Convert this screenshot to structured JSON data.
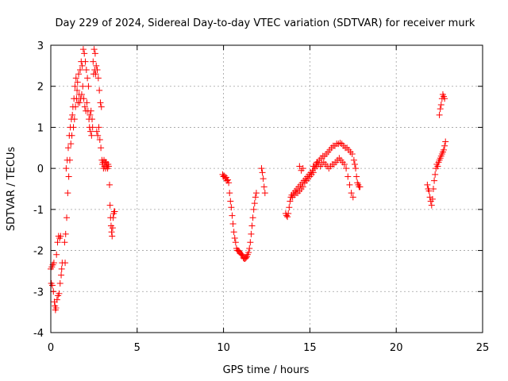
{
  "chart_data": {
    "type": "scatter",
    "title": "Day 229 of 2024, Sidereal Day-to-day VTEC variation (SDTVAR) for receiver murk",
    "xlabel": "GPS time / hours",
    "ylabel": "SDTVAR / TECUs",
    "xlim": [
      0,
      25
    ],
    "ylim": [
      -4,
      3
    ],
    "xticks": [
      0,
      5,
      10,
      15,
      20,
      25
    ],
    "yticks": [
      -4,
      -3,
      -2,
      -1,
      0,
      1,
      2,
      3
    ],
    "xtick_labels": [
      "0",
      "5",
      "10",
      "15",
      "20",
      "25"
    ],
    "ytick_labels": [
      "-4",
      "-3",
      "-2",
      "-1",
      "0",
      "1",
      "2",
      "3"
    ],
    "grid": true,
    "marker": "plus",
    "colors": {
      "series": "#ff0000",
      "grid": "#a0a0a0",
      "axis": "#000000"
    },
    "series": [
      {
        "name": "SDTVAR",
        "points": [
          [
            0.0,
            -2.45
          ],
          [
            0.03,
            -2.8
          ],
          [
            0.06,
            -2.4
          ],
          [
            0.09,
            -2.85
          ],
          [
            0.12,
            -2.35
          ],
          [
            0.15,
            -3.0
          ],
          [
            0.18,
            -2.3
          ],
          [
            0.21,
            -3.25
          ],
          [
            0.24,
            -3.35
          ],
          [
            0.27,
            -3.45
          ],
          [
            0.3,
            -3.4
          ],
          [
            0.33,
            -2.1
          ],
          [
            0.36,
            -3.2
          ],
          [
            0.39,
            -1.8
          ],
          [
            0.42,
            -3.1
          ],
          [
            0.45,
            -1.65
          ],
          [
            0.48,
            -3.05
          ],
          [
            0.51,
            -1.7
          ],
          [
            0.54,
            -2.8
          ],
          [
            0.57,
            -1.65
          ],
          [
            0.6,
            -2.6
          ],
          [
            0.63,
            -2.45
          ],
          [
            0.66,
            -2.3
          ],
          [
            0.8,
            -1.8
          ],
          [
            0.83,
            -2.3
          ],
          [
            0.86,
            -1.6
          ],
          [
            0.89,
            0.0
          ],
          [
            0.92,
            -1.2
          ],
          [
            0.95,
            0.2
          ],
          [
            0.98,
            -0.6
          ],
          [
            1.01,
            0.5
          ],
          [
            1.04,
            -0.2
          ],
          [
            1.07,
            0.8
          ],
          [
            1.1,
            0.2
          ],
          [
            1.13,
            1.0
          ],
          [
            1.16,
            0.6
          ],
          [
            1.19,
            1.2
          ],
          [
            1.22,
            0.8
          ],
          [
            1.25,
            1.3
          ],
          [
            1.28,
            1.5
          ],
          [
            1.31,
            1.0
          ],
          [
            1.34,
            1.7
          ],
          [
            1.37,
            1.2
          ],
          [
            1.4,
            2.0
          ],
          [
            1.43,
            1.5
          ],
          [
            1.46,
            2.2
          ],
          [
            1.49,
            1.7
          ],
          [
            1.52,
            1.9
          ],
          [
            1.55,
            2.1
          ],
          [
            1.58,
            1.6
          ],
          [
            1.61,
            2.3
          ],
          [
            1.64,
            1.8
          ],
          [
            1.67,
            1.6
          ],
          [
            1.7,
            2.4
          ],
          [
            1.73,
            1.7
          ],
          [
            1.76,
            2.6
          ],
          [
            1.79,
            1.8
          ],
          [
            1.82,
            2.5
          ],
          [
            1.85,
            2.0
          ],
          [
            1.88,
            2.9
          ],
          [
            1.91,
            1.7
          ],
          [
            1.94,
            2.8
          ],
          [
            1.97,
            1.5
          ],
          [
            2.0,
            2.6
          ],
          [
            2.03,
            1.4
          ],
          [
            2.06,
            2.4
          ],
          [
            2.09,
            1.6
          ],
          [
            2.12,
            2.2
          ],
          [
            2.15,
            1.4
          ],
          [
            2.18,
            2.0
          ],
          [
            2.21,
            1.2
          ],
          [
            2.24,
            1.0
          ],
          [
            2.27,
            1.3
          ],
          [
            2.3,
            0.9
          ],
          [
            2.33,
            1.4
          ],
          [
            2.36,
            0.8
          ],
          [
            2.39,
            1.2
          ],
          [
            2.42,
            1.0
          ],
          [
            2.45,
            2.6
          ],
          [
            2.48,
            2.3
          ],
          [
            2.51,
            2.9
          ],
          [
            2.54,
            2.4
          ],
          [
            2.57,
            2.8
          ],
          [
            2.6,
            2.3
          ],
          [
            2.63,
            2.5
          ],
          [
            2.66,
            0.9
          ],
          [
            2.69,
            2.4
          ],
          [
            2.72,
            0.8
          ],
          [
            2.75,
            2.2
          ],
          [
            2.78,
            1.0
          ],
          [
            2.81,
            1.9
          ],
          [
            2.84,
            0.7
          ],
          [
            2.87,
            1.6
          ],
          [
            2.9,
            0.5
          ],
          [
            2.93,
            1.5
          ],
          [
            2.96,
            0.2
          ],
          [
            2.99,
            0.1
          ],
          [
            3.02,
            0.15
          ],
          [
            3.05,
            0.0
          ],
          [
            3.08,
            0.2
          ],
          [
            3.11,
            0.05
          ],
          [
            3.14,
            0.15
          ],
          [
            3.17,
            0.0
          ],
          [
            3.2,
            0.15
          ],
          [
            3.23,
            0.05
          ],
          [
            3.26,
            0.1
          ],
          [
            3.29,
            0.0
          ],
          [
            3.32,
            0.1
          ],
          [
            3.35,
            0.05
          ],
          [
            3.4,
            -0.4
          ],
          [
            3.43,
            -0.9
          ],
          [
            3.46,
            -1.2
          ],
          [
            3.49,
            -1.4
          ],
          [
            3.52,
            -1.55
          ],
          [
            3.55,
            -1.65
          ],
          [
            3.58,
            -1.45
          ],
          [
            3.61,
            -1.2
          ],
          [
            3.64,
            -1.1
          ],
          [
            3.67,
            -1.05
          ],
          [
            3.7,
            -1.05
          ],
          [
            9.95,
            -0.15
          ],
          [
            10.0,
            -0.2
          ],
          [
            10.05,
            -0.18
          ],
          [
            10.1,
            -0.25
          ],
          [
            10.15,
            -0.22
          ],
          [
            10.2,
            -0.3
          ],
          [
            10.25,
            -0.28
          ],
          [
            10.3,
            -0.35
          ],
          [
            10.35,
            -0.6
          ],
          [
            10.4,
            -0.8
          ],
          [
            10.45,
            -0.95
          ],
          [
            10.5,
            -1.15
          ],
          [
            10.55,
            -1.35
          ],
          [
            10.6,
            -1.55
          ],
          [
            10.65,
            -1.7
          ],
          [
            10.7,
            -1.8
          ],
          [
            10.75,
            -1.95
          ],
          [
            10.8,
            -2.0
          ],
          [
            10.85,
            -2.0
          ],
          [
            10.9,
            -2.02
          ],
          [
            10.95,
            -2.05
          ],
          [
            11.0,
            -2.08
          ],
          [
            11.05,
            -2.1
          ],
          [
            11.1,
            -2.12
          ],
          [
            11.15,
            -2.18
          ],
          [
            11.2,
            -2.2
          ],
          [
            11.25,
            -2.2
          ],
          [
            11.3,
            -2.18
          ],
          [
            11.35,
            -2.15
          ],
          [
            11.4,
            -2.1
          ],
          [
            11.45,
            -2.05
          ],
          [
            11.5,
            -1.95
          ],
          [
            11.55,
            -1.8
          ],
          [
            11.6,
            -1.6
          ],
          [
            11.65,
            -1.4
          ],
          [
            11.7,
            -1.2
          ],
          [
            11.75,
            -1.0
          ],
          [
            11.8,
            -0.85
          ],
          [
            11.85,
            -0.7
          ],
          [
            11.9,
            -0.6
          ],
          [
            12.2,
            0.0
          ],
          [
            12.25,
            -0.1
          ],
          [
            12.3,
            -0.25
          ],
          [
            12.35,
            -0.45
          ],
          [
            12.4,
            -0.6
          ],
          [
            13.6,
            -1.1
          ],
          [
            13.65,
            -1.15
          ],
          [
            13.7,
            -1.18
          ],
          [
            13.75,
            -1.1
          ],
          [
            13.8,
            -0.95
          ],
          [
            13.85,
            -0.8
          ],
          [
            13.9,
            -0.7
          ],
          [
            13.95,
            -0.65
          ],
          [
            14.0,
            -0.7
          ],
          [
            14.05,
            -0.6
          ],
          [
            14.1,
            -0.65
          ],
          [
            14.15,
            -0.55
          ],
          [
            14.2,
            -0.6
          ],
          [
            14.25,
            -0.5
          ],
          [
            14.3,
            -0.6
          ],
          [
            14.35,
            -0.45
          ],
          [
            14.4,
            -0.55
          ],
          [
            14.45,
            -0.4
          ],
          [
            14.5,
            -0.5
          ],
          [
            14.55,
            -0.35
          ],
          [
            14.6,
            -0.45
          ],
          [
            14.65,
            -0.3
          ],
          [
            14.7,
            -0.35
          ],
          [
            14.75,
            -0.25
          ],
          [
            14.8,
            -0.3
          ],
          [
            14.85,
            -0.2
          ],
          [
            14.9,
            -0.25
          ],
          [
            14.95,
            -0.15
          ],
          [
            15.0,
            -0.2
          ],
          [
            15.05,
            -0.1
          ],
          [
            15.1,
            -0.15
          ],
          [
            15.15,
            -0.05
          ],
          [
            15.2,
            -0.1
          ],
          [
            15.25,
            0.05
          ],
          [
            15.3,
            0.0
          ],
          [
            15.35,
            0.1
          ],
          [
            15.4,
            0.05
          ],
          [
            15.45,
            0.15
          ],
          [
            15.5,
            0.1
          ],
          [
            15.55,
            0.2
          ],
          [
            15.6,
            0.05
          ],
          [
            15.65,
            0.25
          ],
          [
            15.7,
            0.1
          ],
          [
            15.75,
            0.3
          ],
          [
            15.8,
            0.15
          ],
          [
            15.85,
            0.3
          ],
          [
            15.9,
            0.1
          ],
          [
            15.95,
            0.35
          ],
          [
            16.0,
            0.05
          ],
          [
            16.05,
            0.4
          ],
          [
            16.1,
            0.0
          ],
          [
            16.15,
            0.45
          ],
          [
            16.2,
            0.05
          ],
          [
            16.25,
            0.5
          ],
          [
            16.3,
            0.1
          ],
          [
            16.35,
            0.55
          ],
          [
            16.4,
            0.1
          ],
          [
            16.45,
            0.55
          ],
          [
            16.5,
            0.15
          ],
          [
            16.55,
            0.6
          ],
          [
            16.6,
            0.2
          ],
          [
            16.65,
            0.6
          ],
          [
            16.7,
            0.25
          ],
          [
            16.75,
            0.62
          ],
          [
            16.8,
            0.2
          ],
          [
            16.85,
            0.6
          ],
          [
            16.9,
            0.15
          ],
          [
            16.95,
            0.55
          ],
          [
            17.0,
            0.1
          ],
          [
            17.05,
            0.5
          ],
          [
            17.1,
            0.0
          ],
          [
            17.15,
            0.5
          ],
          [
            17.2,
            -0.2
          ],
          [
            17.25,
            0.45
          ],
          [
            17.3,
            -0.4
          ],
          [
            17.35,
            0.4
          ],
          [
            17.4,
            -0.6
          ],
          [
            17.45,
            0.35
          ],
          [
            17.5,
            -0.7
          ],
          [
            17.55,
            0.2
          ],
          [
            17.6,
            0.1
          ],
          [
            17.65,
            0.0
          ],
          [
            17.7,
            -0.2
          ],
          [
            17.75,
            -0.35
          ],
          [
            17.8,
            -0.4
          ],
          [
            17.85,
            -0.45
          ],
          [
            17.9,
            -0.45
          ],
          [
            14.4,
            0.05
          ],
          [
            14.5,
            -0.05
          ],
          [
            14.6,
            0.0
          ],
          [
            15.2,
            0.05
          ],
          [
            15.4,
            0.15
          ],
          [
            21.8,
            -0.4
          ],
          [
            21.85,
            -0.5
          ],
          [
            21.9,
            -0.55
          ],
          [
            21.95,
            -0.7
          ],
          [
            22.0,
            -0.8
          ],
          [
            22.05,
            -0.9
          ],
          [
            22.1,
            -0.75
          ],
          [
            22.15,
            -0.5
          ],
          [
            22.2,
            -0.3
          ],
          [
            22.25,
            -0.15
          ],
          [
            22.3,
            0.0
          ],
          [
            22.35,
            0.1
          ],
          [
            22.4,
            0.05
          ],
          [
            22.45,
            0.15
          ],
          [
            22.5,
            0.2
          ],
          [
            22.55,
            0.25
          ],
          [
            22.6,
            0.3
          ],
          [
            22.65,
            0.35
          ],
          [
            22.7,
            0.4
          ],
          [
            22.75,
            0.45
          ],
          [
            22.8,
            0.55
          ],
          [
            22.85,
            0.65
          ],
          [
            22.5,
            1.3
          ],
          [
            22.55,
            1.45
          ],
          [
            22.6,
            1.55
          ],
          [
            22.65,
            1.7
          ],
          [
            22.7,
            1.8
          ],
          [
            22.75,
            1.75
          ],
          [
            22.8,
            1.7
          ]
        ]
      }
    ]
  }
}
